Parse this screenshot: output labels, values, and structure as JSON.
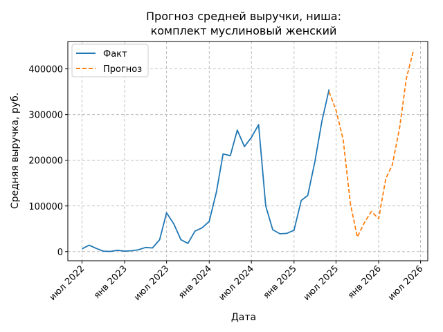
{
  "chart_data": {
    "type": "line",
    "title_lines": [
      "Прогноз средней выручки, ниша:",
      "комплект муслиновый женский"
    ],
    "xlabel": "Дата",
    "ylabel": "Средняя выручка, руб.",
    "xlim": [
      "2022-05-01",
      "2026-08-01"
    ],
    "ylim": [
      -20000,
      460000
    ],
    "grid": true,
    "legend_position": "top-left",
    "x_ticks": [
      "2022-07-01",
      "2023-01-01",
      "2023-07-01",
      "2024-01-01",
      "2024-07-01",
      "2025-01-01",
      "2025-07-01",
      "2026-01-01",
      "2026-07-01"
    ],
    "x_tick_labels": [
      "июл 2022",
      "янв 2023",
      "июл 2023",
      "янв 2024",
      "июл 2024",
      "янв 2025",
      "июл 2025",
      "янв 2026",
      "июл 2026"
    ],
    "y_ticks": [
      0,
      100000,
      200000,
      300000,
      400000
    ],
    "y_tick_labels": [
      "0",
      "100000",
      "200000",
      "300000",
      "400000"
    ],
    "series": [
      {
        "name": "Факт",
        "color": "#1f77b4",
        "style": "solid",
        "x": [
          "2022-07-01",
          "2022-08-01",
          "2022-09-01",
          "2022-10-01",
          "2022-11-01",
          "2022-12-01",
          "2023-01-01",
          "2023-02-01",
          "2023-03-01",
          "2023-04-01",
          "2023-05-01",
          "2023-06-01",
          "2023-07-01",
          "2023-08-01",
          "2023-09-01",
          "2023-10-01",
          "2023-11-01",
          "2023-12-01",
          "2024-01-01",
          "2024-02-01",
          "2024-03-01",
          "2024-04-01",
          "2024-05-01",
          "2024-06-01",
          "2024-07-01",
          "2024-08-01",
          "2024-09-01",
          "2024-10-01",
          "2024-11-01",
          "2024-12-01",
          "2025-01-01",
          "2025-02-01",
          "2025-03-01",
          "2025-04-01",
          "2025-05-01",
          "2025-06-01"
        ],
        "values": [
          6000,
          14000,
          7000,
          1000,
          500,
          3000,
          1000,
          2000,
          4000,
          9000,
          8000,
          26000,
          85000,
          61000,
          26000,
          18000,
          45000,
          52000,
          66000,
          130000,
          214000,
          210000,
          266000,
          230000,
          250000,
          278000,
          100000,
          48000,
          39000,
          40000,
          47000,
          112000,
          123000,
          197000,
          285000,
          355000
        ]
      },
      {
        "name": "Прогноз",
        "color": "#ff7f0e",
        "style": "dashed",
        "x": [
          "2025-06-01",
          "2025-07-01",
          "2025-08-01",
          "2025-09-01",
          "2025-10-01",
          "2025-11-01",
          "2025-12-01",
          "2026-01-01",
          "2026-02-01",
          "2026-03-01",
          "2026-04-01",
          "2026-05-01",
          "2026-06-01"
        ],
        "values": [
          350000,
          310000,
          245000,
          105000,
          32000,
          64000,
          88000,
          72000,
          160000,
          190000,
          270000,
          380000,
          442000
        ]
      }
    ]
  }
}
